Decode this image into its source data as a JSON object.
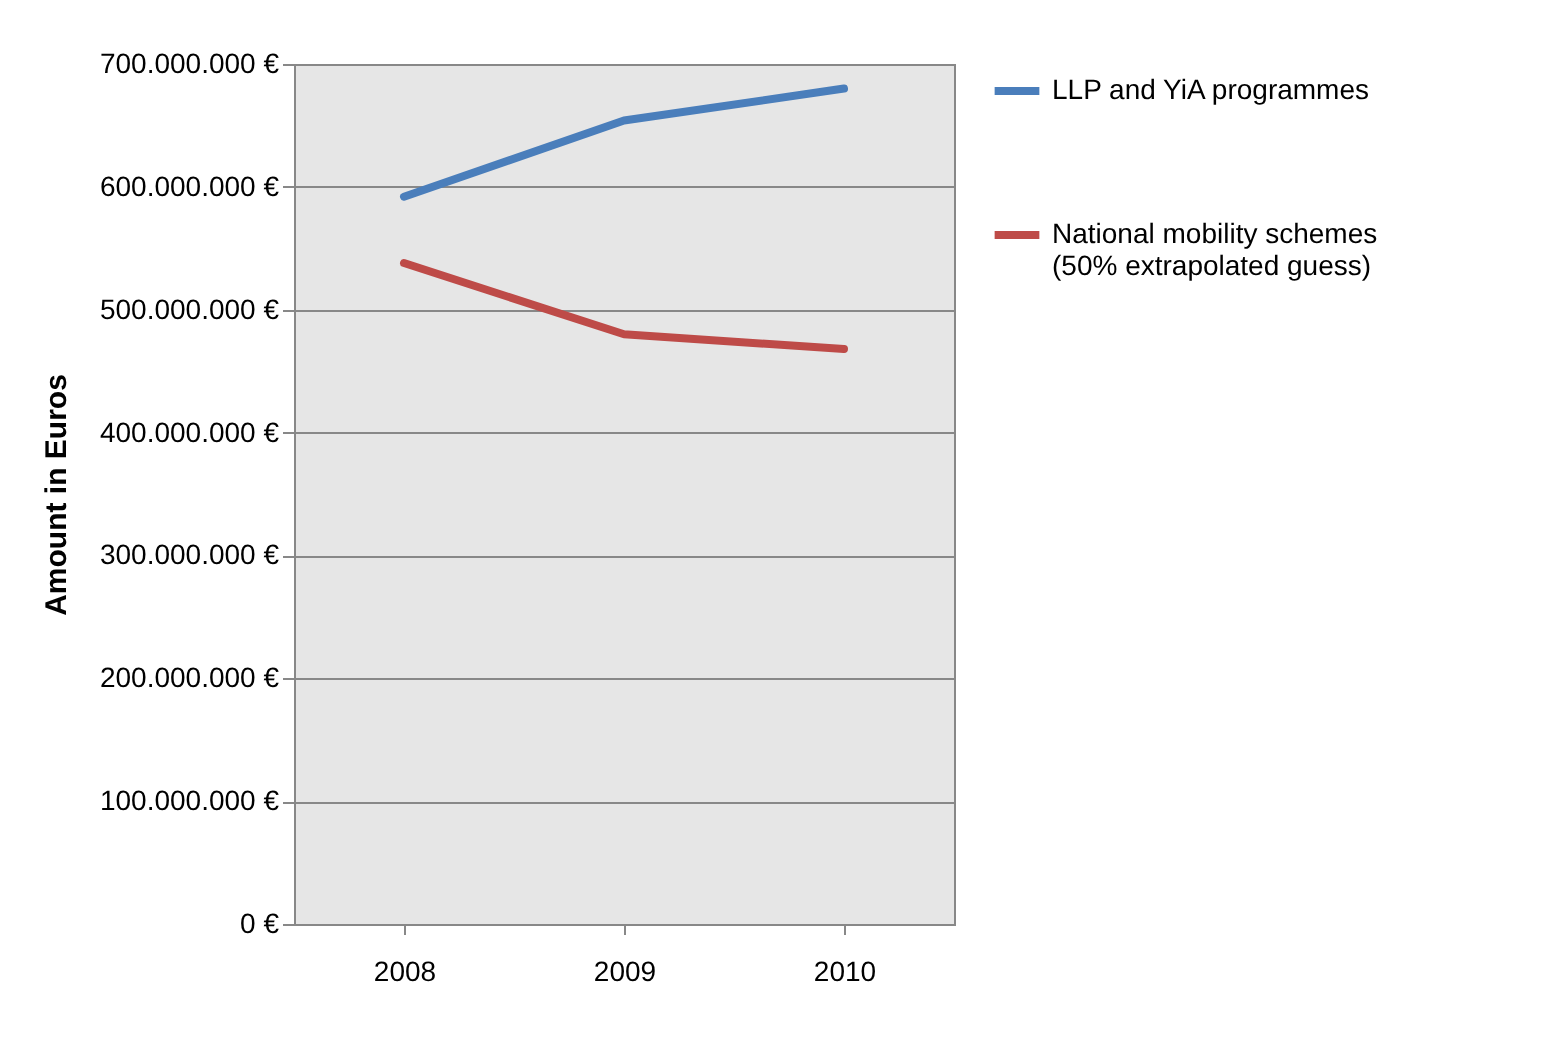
{
  "chart_data": {
    "type": "line",
    "ylabel": "Amount in Euros",
    "categories": [
      "2008",
      "2009",
      "2010"
    ],
    "series": [
      {
        "name": "LLP and YiA programmes",
        "color": "#4a7ebb",
        "values": [
          592000000,
          654000000,
          680000000
        ]
      },
      {
        "name": "National mobility schemes\n(50% extrapolated guess)",
        "color": "#be4b48",
        "values": [
          538000000,
          480000000,
          468000000
        ]
      }
    ],
    "ylim": [
      0,
      700000000
    ],
    "yticks": [
      {
        "value": 0,
        "label": "0 €"
      },
      {
        "value": 100000000,
        "label": "100.000.000 €"
      },
      {
        "value": 200000000,
        "label": "200.000.000 €"
      },
      {
        "value": 300000000,
        "label": "300.000.000 €"
      },
      {
        "value": 400000000,
        "label": "400.000.000 €"
      },
      {
        "value": 500000000,
        "label": "500.000.000 €"
      },
      {
        "value": 600000000,
        "label": "600.000.000 €"
      },
      {
        "value": 700000000,
        "label": "700.000.000 €"
      }
    ],
    "grid": "y",
    "legend": "right",
    "marker": "none",
    "line_style": "solid"
  }
}
